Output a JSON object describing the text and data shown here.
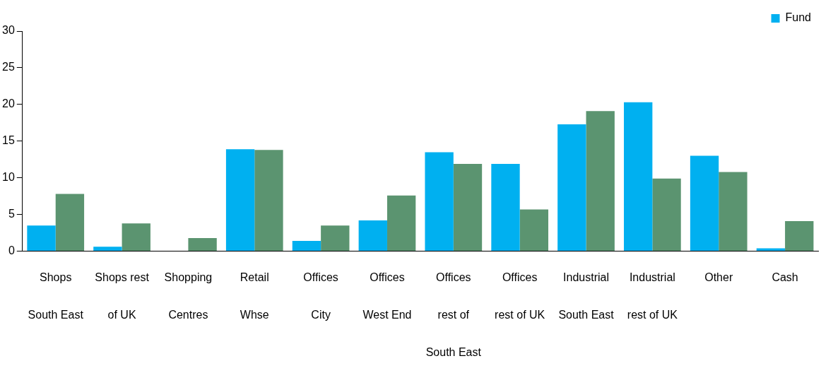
{
  "chart_data": {
    "type": "bar",
    "categories": [
      "Shops\nSouth East",
      "Shops rest\nof UK",
      "Shopping\nCentres",
      "Retail\nWhse",
      "Offices\nCity",
      "Offices\nWest End",
      "Offices\nrest of\nSouth East",
      "Offices\nrest of UK",
      "Industrial\nSouth East",
      "Industrial\nrest of UK",
      "Other",
      "Cash"
    ],
    "series": [
      {
        "name": "Fund",
        "color": "#00b0f0",
        "values": [
          3.5,
          0.6,
          0,
          13.9,
          1.4,
          4.2,
          13.5,
          11.9,
          17.3,
          20.3,
          13.0,
          0.4
        ]
      },
      {
        "color": "#5b9470",
        "values": [
          7.8,
          3.8,
          1.8,
          13.8,
          3.5,
          7.6,
          11.9,
          5.7,
          19.1,
          9.9,
          10.8,
          4.1
        ]
      }
    ],
    "ylim": [
      0,
      30
    ],
    "yticks": [
      0,
      5,
      10,
      15,
      20,
      25,
      30
    ],
    "grid": false,
    "legend": "top right"
  }
}
